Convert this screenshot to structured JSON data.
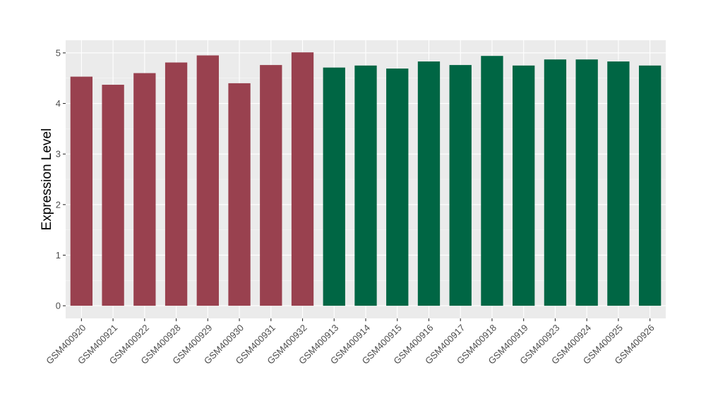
{
  "chart_data": {
    "type": "bar",
    "title": "",
    "xlabel": "",
    "ylabel": "Expression Level",
    "ylim": [
      -0.25,
      5.25
    ],
    "yticks": [
      0,
      1,
      2,
      3,
      4,
      5
    ],
    "grid": true,
    "background_color": "#EBEBEB",
    "categories": [
      "GSM400920",
      "GSM400921",
      "GSM400922",
      "GSM400928",
      "GSM400929",
      "GSM400930",
      "GSM400931",
      "GSM400932",
      "GSM400913",
      "GSM400914",
      "GSM400915",
      "GSM400916",
      "GSM400917",
      "GSM400918",
      "GSM400919",
      "GSM400923",
      "GSM400924",
      "GSM400925",
      "GSM400926"
    ],
    "values": [
      4.53,
      4.37,
      4.6,
      4.81,
      4.95,
      4.4,
      4.76,
      5.01,
      4.71,
      4.75,
      4.69,
      4.83,
      4.76,
      4.94,
      4.75,
      4.87,
      4.87,
      4.83,
      4.75
    ],
    "bar_colors": [
      "#99414F",
      "#99414F",
      "#99414F",
      "#99414F",
      "#99414F",
      "#99414F",
      "#99414F",
      "#99414F",
      "#006644",
      "#006644",
      "#006644",
      "#006644",
      "#006644",
      "#006644",
      "#006644",
      "#006644",
      "#006644",
      "#006644",
      "#006644"
    ]
  }
}
